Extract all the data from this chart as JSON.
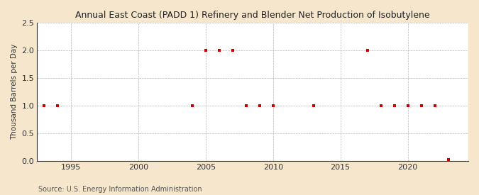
{
  "title": "Annual East Coast (PADD 1) Refinery and Blender Net Production of Isobutylene",
  "ylabel": "Thousand Barrels per Day",
  "source": "Source: U.S. Energy Information Administration",
  "figure_bg": "#f5e6cc",
  "plot_bg": "#ffffff",
  "marker_color": "#cc0000",
  "grid_color": "#999999",
  "xlim": [
    1992.5,
    2024.5
  ],
  "ylim": [
    0.0,
    2.5
  ],
  "yticks": [
    0.0,
    0.5,
    1.0,
    1.5,
    2.0,
    2.5
  ],
  "xticks": [
    1995,
    2000,
    2005,
    2010,
    2015,
    2020
  ],
  "data_years": [
    1993,
    1994,
    2004,
    2005,
    2006,
    2007,
    2008,
    2009,
    2010,
    2013,
    2017,
    2018,
    2019,
    2020,
    2021,
    2022,
    2023
  ],
  "data_values": [
    1.0,
    1.0,
    1.0,
    2.0,
    2.0,
    2.0,
    1.0,
    1.0,
    1.0,
    1.0,
    2.0,
    1.0,
    1.0,
    1.0,
    1.0,
    1.0,
    0.02
  ]
}
